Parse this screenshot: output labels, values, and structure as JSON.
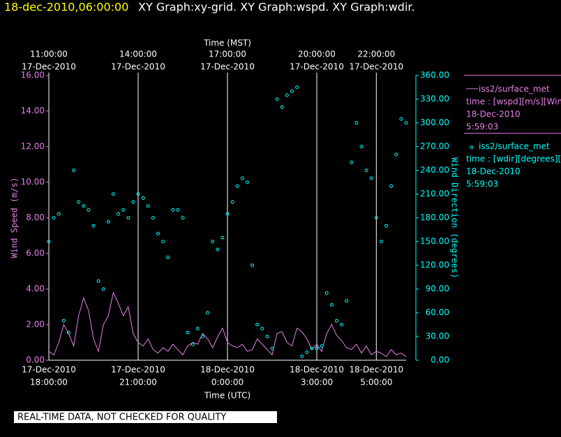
{
  "header": {
    "timestamp": "18-dec-2010,06:00:00",
    "graphs": "XY Graph:xy-grid.  XY Graph:wspd.  XY Graph:wdir."
  },
  "notice": "REAL-TIME DATA, NOT CHECKED FOR QUALITY",
  "chart_data": {
    "type": "line",
    "xlabel": "Time (UTC)",
    "x2label": "Time (MST)",
    "ylabel": "Wind Speed (m/s)",
    "y2label": "Wind Direction (degrees)",
    "xlim": [
      "2010-12-17T18:00",
      "2010-12-18T06:00"
    ],
    "xticks": [
      {
        "value": "2010-12-17T18:00",
        "label": [
          "17-Dec-2010",
          "18:00:00"
        ]
      },
      {
        "value": "2010-12-17T21:00",
        "label": [
          "17-Dec-2010",
          "21:00:00"
        ]
      },
      {
        "value": "2010-12-18T00:00",
        "label": [
          "18-Dec-2010",
          "0:00:00"
        ]
      },
      {
        "value": "2010-12-18T03:00",
        "label": [
          "18-Dec-2010",
          "3:00:00"
        ]
      },
      {
        "value": "2010-12-18T05:00",
        "label": [
          "18-Dec-2010",
          "5:00:00"
        ]
      }
    ],
    "x2lim": [
      "2010-12-17T11:00",
      "2010-12-17T23:00"
    ],
    "x2ticks": [
      {
        "value": "2010-12-17T11:00",
        "label": [
          "11:00:00",
          "17-Dec-2010"
        ]
      },
      {
        "value": "2010-12-17T14:00",
        "label": [
          "14:00:00",
          "17-Dec-2010"
        ]
      },
      {
        "value": "2010-12-17T17:00",
        "label": [
          "17:00:00",
          "17-Dec-2010"
        ]
      },
      {
        "value": "2010-12-17T20:00",
        "label": [
          "20:00:00",
          "17-Dec-2010"
        ]
      },
      {
        "value": "2010-12-17T22:00",
        "label": [
          "22:00:00",
          "17-Dec-2010"
        ]
      }
    ],
    "ylim": [
      0,
      16
    ],
    "yticks": [
      {
        "value": 0,
        "label": "0.00"
      },
      {
        "value": 2,
        "label": "2.00"
      },
      {
        "value": 4,
        "label": "4.00"
      },
      {
        "value": 6,
        "label": "6.00"
      },
      {
        "value": 8,
        "label": "8.00"
      },
      {
        "value": 10,
        "label": "10.00"
      },
      {
        "value": 12,
        "label": "12.00"
      },
      {
        "value": 14,
        "label": "14.00"
      },
      {
        "value": 16,
        "label": "16.00"
      }
    ],
    "y2lim": [
      0,
      360
    ],
    "y2ticks": [
      {
        "value": 0,
        "label": "0.00"
      },
      {
        "value": 30,
        "label": "30.00"
      },
      {
        "value": 60,
        "label": "60.00"
      },
      {
        "value": 90,
        "label": "90.00"
      },
      {
        "value": 120,
        "label": "120.00"
      },
      {
        "value": 150,
        "label": "150.00"
      },
      {
        "value": 180,
        "label": "180.00"
      },
      {
        "value": 210,
        "label": "210.00"
      },
      {
        "value": 240,
        "label": "240.00"
      },
      {
        "value": 270,
        "label": "270.00"
      },
      {
        "value": 300,
        "label": "300.00"
      },
      {
        "value": 330,
        "label": "330.00"
      },
      {
        "value": 360,
        "label": "360.00"
      }
    ],
    "grid": true,
    "x": [
      "2010-12-17T18:00",
      "2010-12-17T18:10",
      "2010-12-17T18:20",
      "2010-12-17T18:30",
      "2010-12-17T18:40",
      "2010-12-17T18:50",
      "2010-12-17T19:00",
      "2010-12-17T19:10",
      "2010-12-17T19:20",
      "2010-12-17T19:30",
      "2010-12-17T19:40",
      "2010-12-17T19:50",
      "2010-12-17T20:00",
      "2010-12-17T20:10",
      "2010-12-17T20:20",
      "2010-12-17T20:30",
      "2010-12-17T20:40",
      "2010-12-17T20:50",
      "2010-12-17T21:00",
      "2010-12-17T21:10",
      "2010-12-17T21:20",
      "2010-12-17T21:30",
      "2010-12-17T21:40",
      "2010-12-17T21:50",
      "2010-12-17T22:00",
      "2010-12-17T22:10",
      "2010-12-17T22:20",
      "2010-12-17T22:30",
      "2010-12-17T22:40",
      "2010-12-17T22:50",
      "2010-12-17T23:00",
      "2010-12-17T23:10",
      "2010-12-17T23:20",
      "2010-12-17T23:30",
      "2010-12-17T23:40",
      "2010-12-17T23:50",
      "2010-12-18T00:00",
      "2010-12-18T00:10",
      "2010-12-18T00:20",
      "2010-12-18T00:30",
      "2010-12-18T00:40",
      "2010-12-18T00:50",
      "2010-12-18T01:00",
      "2010-12-18T01:10",
      "2010-12-18T01:20",
      "2010-12-18T01:30",
      "2010-12-18T01:40",
      "2010-12-18T01:50",
      "2010-12-18T02:00",
      "2010-12-18T02:10",
      "2010-12-18T02:20",
      "2010-12-18T02:30",
      "2010-12-18T02:40",
      "2010-12-18T02:50",
      "2010-12-18T03:00",
      "2010-12-18T03:10",
      "2010-12-18T03:20",
      "2010-12-18T03:30",
      "2010-12-18T03:40",
      "2010-12-18T03:50",
      "2010-12-18T04:00",
      "2010-12-18T04:10",
      "2010-12-18T04:20",
      "2010-12-18T04:30",
      "2010-12-18T04:40",
      "2010-12-18T04:50",
      "2010-12-18T05:00",
      "2010-12-18T05:10",
      "2010-12-18T05:20",
      "2010-12-18T05:30",
      "2010-12-18T05:40",
      "2010-12-18T05:50",
      "2010-12-18T06:00"
    ],
    "series": [
      {
        "name": "iss2/surface_met",
        "legend_lines": [
          "time : [wspd][m/s][Wind",
          "18-Dec-2010",
          "5:59:03"
        ],
        "color": "#e680e6",
        "style": "line",
        "values": [
          0.5,
          0.3,
          1.0,
          2.0,
          1.5,
          0.8,
          2.5,
          3.5,
          2.8,
          1.2,
          0.5,
          2.0,
          2.5,
          3.8,
          3.2,
          2.5,
          3.0,
          1.5,
          1.0,
          0.8,
          1.2,
          0.6,
          0.4,
          0.7,
          0.5,
          0.9,
          0.6,
          0.3,
          0.8,
          1.0,
          0.9,
          1.5,
          1.2,
          0.7,
          1.3,
          1.8,
          1.0,
          0.8,
          0.7,
          0.9,
          0.5,
          0.6,
          1.2,
          0.9,
          0.6,
          0.3,
          1.5,
          1.6,
          1.0,
          0.8,
          1.8,
          1.6,
          1.2,
          0.6,
          0.9,
          0.5,
          1.5,
          2.0,
          1.4,
          1.1,
          0.7,
          0.6,
          0.9,
          0.4,
          0.8,
          0.3,
          0.5,
          0.4,
          0.2,
          0.6,
          0.3,
          0.4,
          0.2
        ]
      },
      {
        "name": "iss2/surface_met",
        "legend_lines": [
          "time : [wdir][degrees][W",
          "18-Dec-2010",
          "5:59:03"
        ],
        "color": "#00ffff",
        "style": "scatter",
        "axis": "y2",
        "values": [
          150,
          180,
          185,
          50,
          35,
          240,
          200,
          195,
          190,
          170,
          100,
          90,
          175,
          210,
          185,
          190,
          180,
          200,
          210,
          205,
          195,
          180,
          160,
          150,
          130,
          190,
          190,
          180,
          35,
          20,
          40,
          30,
          60,
          150,
          140,
          155,
          185,
          200,
          220,
          230,
          225,
          120,
          45,
          40,
          30,
          15,
          330,
          320,
          335,
          340,
          345,
          5,
          10,
          15,
          15,
          18,
          85,
          70,
          50,
          45,
          75,
          250,
          300,
          270,
          240,
          230,
          180,
          150,
          170,
          220,
          260,
          305,
          300
        ]
      }
    ]
  }
}
